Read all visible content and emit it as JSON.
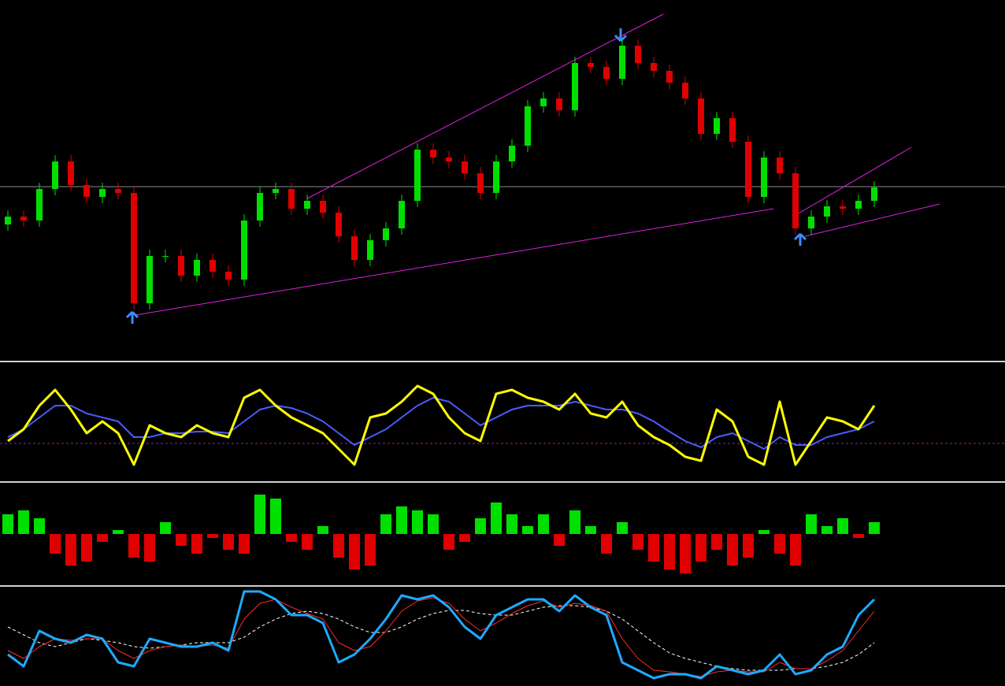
{
  "chart_data": [
    {
      "type": "candlestick",
      "up_color": "#00e000",
      "down_color": "#e00000",
      "wick_color": "#c8c8c8",
      "ylim": [
        0,
        460
      ],
      "open": [
        175,
        185,
        180,
        220,
        255,
        225,
        210,
        220,
        215,
        75,
        135,
        135,
        110,
        130,
        115,
        105,
        180,
        215,
        220,
        195,
        205,
        190,
        160,
        130,
        155,
        170,
        205,
        270,
        260,
        255,
        240,
        215,
        255,
        275,
        325,
        335,
        320,
        380,
        375,
        360,
        402,
        380,
        370,
        355,
        335,
        290,
        310,
        280,
        210,
        260,
        240,
        170,
        185,
        198,
        195,
        205
      ],
      "high": [
        193,
        193,
        228,
        263,
        263,
        233,
        228,
        228,
        223,
        143,
        143,
        143,
        138,
        138,
        123,
        188,
        223,
        228,
        228,
        213,
        213,
        198,
        168,
        163,
        178,
        213,
        278,
        278,
        268,
        263,
        248,
        263,
        283,
        333,
        343,
        343,
        388,
        388,
        383,
        410,
        410,
        388,
        378,
        363,
        343,
        318,
        318,
        288,
        268,
        268,
        248,
        193,
        206,
        206,
        213,
        230
      ],
      "low": [
        167,
        172,
        172,
        212,
        217,
        202,
        202,
        207,
        67,
        67,
        127,
        102,
        102,
        107,
        97,
        97,
        172,
        207,
        187,
        187,
        182,
        152,
        122,
        122,
        147,
        162,
        197,
        252,
        247,
        232,
        207,
        207,
        247,
        267,
        317,
        312,
        312,
        367,
        352,
        352,
        372,
        362,
        347,
        327,
        282,
        282,
        272,
        202,
        202,
        232,
        162,
        162,
        177,
        187,
        187,
        197
      ],
      "close": [
        185,
        180,
        220,
        255,
        225,
        210,
        220,
        215,
        75,
        135,
        135,
        110,
        130,
        115,
        105,
        180,
        215,
        220,
        195,
        205,
        190,
        160,
        130,
        155,
        170,
        205,
        270,
        260,
        255,
        240,
        215,
        255,
        275,
        325,
        335,
        320,
        380,
        375,
        360,
        402,
        380,
        370,
        355,
        335,
        290,
        310,
        280,
        210,
        260,
        240,
        170,
        185,
        198,
        195,
        205,
        222
      ]
    },
    {
      "type": "line",
      "ylim": [
        0,
        148
      ],
      "series": [
        {
          "color": "#4a5cff",
          "width": 2,
          "values": [
            55,
            65,
            80,
            95,
            95,
            85,
            80,
            75,
            55,
            55,
            60,
            60,
            62,
            62,
            60,
            75,
            90,
            95,
            92,
            85,
            75,
            60,
            45,
            55,
            65,
            80,
            95,
            105,
            100,
            85,
            70,
            80,
            90,
            95,
            95,
            95,
            100,
            95,
            90,
            90,
            85,
            75,
            62,
            50,
            42,
            55,
            60,
            50,
            40,
            55,
            45,
            45,
            55,
            60,
            65,
            75
          ]
        },
        {
          "color": "#ffff00",
          "width": 3,
          "values": [
            50,
            65,
            95,
            115,
            90,
            60,
            75,
            60,
            20,
            70,
            60,
            55,
            70,
            60,
            55,
            105,
            115,
            95,
            80,
            70,
            60,
            40,
            20,
            80,
            85,
            100,
            120,
            110,
            80,
            60,
            50,
            110,
            115,
            105,
            100,
            90,
            110,
            85,
            80,
            100,
            70,
            55,
            45,
            30,
            25,
            90,
            75,
            30,
            20,
            100,
            20,
            50,
            80,
            75,
            65,
            95
          ]
        }
      ]
    },
    {
      "type": "bar",
      "ylim": [
        -64,
        64
      ],
      "up_color": "#00e000",
      "down_color": "#e00000",
      "values": [
        25,
        30,
        20,
        -25,
        -40,
        -35,
        -10,
        5,
        -30,
        -35,
        15,
        -15,
        -25,
        -5,
        -20,
        -25,
        50,
        45,
        -10,
        -20,
        10,
        -30,
        -45,
        -40,
        25,
        35,
        30,
        25,
        -20,
        -10,
        20,
        40,
        25,
        10,
        25,
        -15,
        30,
        10,
        -25,
        15,
        -20,
        -35,
        -45,
        -50,
        -35,
        -20,
        -40,
        -30,
        5,
        -25,
        -40,
        25,
        10,
        20,
        -5,
        15
      ]
    },
    {
      "type": "line",
      "ylim": [
        0,
        125
      ],
      "series": [
        {
          "color": "#ffffff",
          "width": 1,
          "dash": true,
          "values": [
            75,
            65,
            55,
            50,
            55,
            60,
            58,
            55,
            50,
            48,
            50,
            52,
            55,
            55,
            55,
            62,
            75,
            85,
            92,
            95,
            92,
            85,
            75,
            68,
            68,
            75,
            85,
            92,
            96,
            96,
            92,
            90,
            90,
            95,
            100,
            102,
            102,
            100,
            95,
            85,
            70,
            55,
            42,
            35,
            30,
            25,
            22,
            20,
            20,
            20,
            22,
            22,
            25,
            30,
            40,
            55
          ]
        },
        {
          "color": "#ff2a2a",
          "width": 1,
          "values": [
            45,
            35,
            50,
            60,
            58,
            60,
            60,
            45,
            35,
            45,
            50,
            52,
            50,
            52,
            48,
            85,
            105,
            110,
            100,
            92,
            85,
            55,
            45,
            50,
            70,
            95,
            108,
            112,
            105,
            85,
            70,
            80,
            92,
            102,
            108,
            100,
            105,
            102,
            95,
            60,
            35,
            20,
            18,
            15,
            12,
            18,
            20,
            18,
            18,
            30,
            22,
            22,
            32,
            45,
            70,
            95
          ]
        },
        {
          "color": "#1eaaff",
          "width": 3,
          "values": [
            40,
            25,
            70,
            60,
            55,
            65,
            60,
            30,
            25,
            60,
            55,
            50,
            50,
            55,
            45,
            120,
            120,
            110,
            90,
            90,
            80,
            30,
            40,
            60,
            85,
            115,
            110,
            115,
            100,
            75,
            60,
            90,
            100,
            110,
            110,
            95,
            115,
            100,
            90,
            30,
            20,
            10,
            15,
            15,
            10,
            25,
            20,
            15,
            20,
            40,
            15,
            20,
            40,
            50,
            90,
            110
          ]
        }
      ]
    }
  ]
}
